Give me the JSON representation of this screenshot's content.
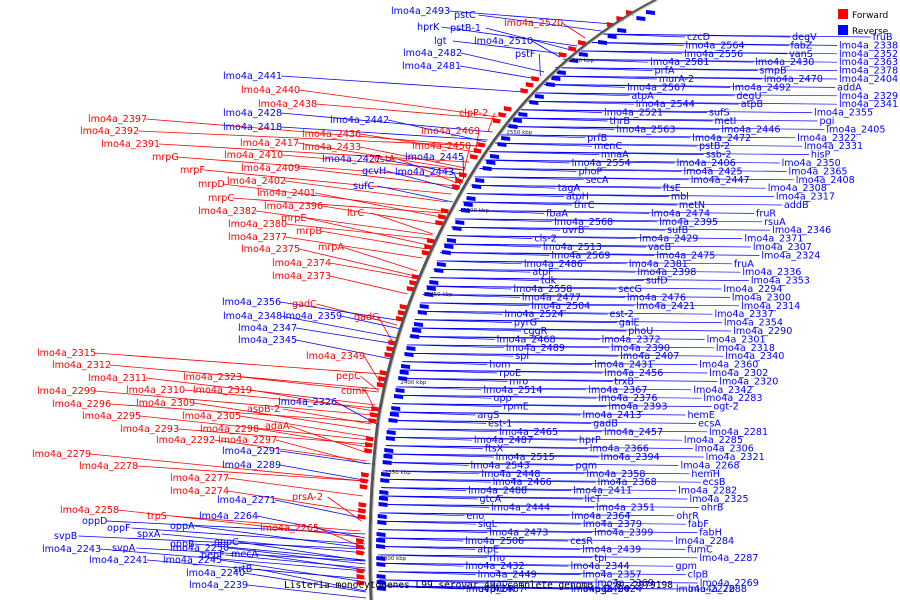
{
  "title": "Listeria monocytogenes L99 serovar 4a, complete genome. - 0..2979198",
  "legend": [
    {
      "label": "Forward",
      "color": "#ff0000"
    },
    {
      "label": "Reverse",
      "color": "#0000ff"
    }
  ],
  "colors": {
    "forward": "#ff0000",
    "reverse": "#0000ff",
    "backbone": "#555555"
  },
  "ticks": [
    "2600 kbp",
    "2550 kbp",
    "2500 kbp",
    "2450 kbp",
    "2400 kbp",
    "2350 kbp",
    "2300 kbp"
  ],
  "forward_labels": [
    "lmo4a_2520",
    "clpP-2",
    "lmo4a_2469",
    "lmo4a_2450",
    "lmo4a_2440",
    "lmo4a_2438",
    "lmo4a_2436",
    "lmo4a_2433",
    "estA",
    "lmo4a_2417",
    "lmo4a_2410",
    "lmo4a_2409",
    "lmo4a_2402",
    "lmo4a_2401",
    "lmo4a_2397",
    "lmo4a_2392",
    "lmo4a_2391",
    "mrpG",
    "mrpF",
    "mrpD",
    "mrpC",
    "lmo4a_2396",
    "ltrC",
    "lmo4a_2382",
    "mrpE",
    "lmo4a_2380",
    "mrpB",
    "lmo4a_2377",
    "mrpA",
    "lmo4a_2375",
    "lmo4a_2374",
    "lmo4a_2373",
    "gadC",
    "gadG",
    "lmo4a_2349",
    "pepC",
    "comK",
    "lmo4a_2315",
    "lmo4a_2312",
    "lmo4a_2311",
    "lmo4a_2323",
    "lmo4a_2310",
    "lmo4a_2319",
    "lmo4a_2299",
    "lmo4a_2309",
    "aspB-2",
    "lmo4a_2296",
    "lmo4a_2305",
    "lmo4a_2295",
    "adaA",
    "lmo4a_2293",
    "lmo4a_2298",
    "lmo4a_2292",
    "lmo4a_2297",
    "lmo4a_2279",
    "lmo4a_2278",
    "lmo4a_2277",
    "lmo4a_2274",
    "prsA-2",
    "lmo4a_2258",
    "trpS",
    "lmo4a_2265"
  ],
  "reverse_outer_labels": [
    "lmo4a_2493",
    "pstC",
    "hprK",
    "pstB-1",
    "lgt",
    "lmo4a_2510",
    "lmo4a_2482",
    "pstF",
    "lmo4a_2481",
    "lmo4a_2441",
    "lmo4a_2428",
    "lmo4a_2442",
    "lmo4a_2418",
    "lmo4a_2427",
    "gcvH",
    "lmo4a_2445",
    "lmo4a_2443",
    "sufC",
    "lmo4a_2356",
    "lmo4a_2348",
    "lmo4a_2359",
    "lmo4a_2347",
    "lmo4a_2345",
    "lmo4a_2326",
    "lmo4a_2291",
    "lmo4a_2289",
    "lmo4a_2271",
    "lmo4a_2264",
    "oppD",
    "oppF",
    "spxA",
    "oppA",
    "svpB",
    "oppB",
    "oppC",
    "lmo4a_2243",
    "svpA",
    "lmo4a_2250",
    "lmo4a_2241",
    "lmo4a_2245",
    "pepF",
    "mecA",
    "lmo4a_2240",
    "srtB",
    "lmo4a_2239"
  ],
  "reverse_inner_labels": [
    "czcD",
    "lmo4a_2564",
    "lmo4a_2556",
    "lmo4a_2581",
    "prfA",
    "murA-2",
    "lmo4a_2567",
    "atpA",
    "lmo4a_2544",
    "lmo4a_2521",
    "thrB",
    "lmo4a_2563",
    "prfB",
    "menC",
    "mnaA",
    "lmo4a_2554",
    "phoP",
    "secA",
    "tagA",
    "atpH",
    "thrC",
    "fbaA",
    "lmo4a_2568",
    "uvrB",
    "cls-2",
    "lmo4a_2513",
    "lmo4a_2569",
    "lmo4a_2486",
    "atpF",
    "tdk",
    "lmo4a_2558",
    "lmo4a_2477",
    "lmo4a_2504",
    "lmo4a_2524",
    "pyrG",
    "cggR",
    "lmo4a_2468",
    "lmo4a_2489",
    "spl",
    "hom",
    "rpoE",
    "mro",
    "lmo4a_2514",
    "upp",
    "rpmE",
    "argS",
    "est-1",
    "lmo4a_2465",
    "lmo4a_2487",
    "ftsX",
    "lmo4a_2515",
    "lmo4a_2543",
    "lmo4a_2448",
    "lmo4a_2466",
    "lmo4a_2488",
    "gtcA",
    "lmo4a_2444",
    "eno",
    "sigL",
    "lmo4a_2473",
    "lmo4a_2506",
    "atpE",
    "rho",
    "lmo4a_2432",
    "lmo4a_2449",
    "gap",
    "lmo4a_2467",
    "uvrA",
    "phoR",
    "degV",
    "fabZ",
    "vanS",
    "lmo4a_2430",
    "smpB",
    "lmo4a_2470",
    "lmo4a_2492",
    "degU",
    "atpB",
    "sufS",
    "metI",
    "lmo4a_2446",
    "lmo4a_2472",
    "pstB-2",
    "ssb-2",
    "lmo4a_2406",
    "lmo4a_2425",
    "lmo4a_2447",
    "ftsE",
    "mbl",
    "metN",
    "lmo4a_2474",
    "lmo4a_2395",
    "sufB",
    "lmo4a_2429",
    "vacB",
    "lmo4a_2475",
    "lmo4a_2381",
    "lmo4a_2398",
    "sufD",
    "secG",
    "lmo4a_2476",
    "lmo4a_2421",
    "est-2",
    "galE",
    "phoU",
    "lmo4a_2372",
    "lmo4a_2390",
    "lmo4a_2407",
    "lmo4a_2431",
    "lmo4a_2456",
    "trxB",
    "lmo4a_2367",
    "lmo4a_2376",
    "lmo4a_2393",
    "lmo4a_2413",
    "gadB",
    "lmo4a_2457",
    "hprP",
    "lmo4a_2366",
    "lmo4a_2394",
    "pgm",
    "lmo4a_2358",
    "lmo4a_2368",
    "lmo4a_2411",
    "licT",
    "lmo4a_2351",
    "lmo4a_2364",
    "lmo4a_2379",
    "lmo4a_2399",
    "cesR",
    "lmo4a_2439",
    "tpi",
    "lmo4a_2344",
    "lmo4a_2357",
    "lmo4a_2369",
    "lmo4a_2400",
    "lmo4a_2424",
    "pgk",
    "fruB",
    "lmo4a_2338",
    "lmo4a_2352",
    "lmo4a_2363",
    "lmo4a_2378",
    "lmo4a_2404",
    "addA",
    "lmo4a_2329",
    "lmo4a_2341",
    "lmo4a_2355",
    "pgi",
    "lmo4a_2405",
    "lmo4a_2322",
    "lmo4a_2331",
    "hisP",
    "lmo4a_2350",
    "lmo4a_2365",
    "lmo4a_2408",
    "lmo4a_2308",
    "lmo4a_2317",
    "addB",
    "fruR",
    "rsuA",
    "lmo4a_2346",
    "lmo4a_2371",
    "lmo4a_2307",
    "lmo4a_2324",
    "fruA",
    "lmo4a_2336",
    "lmo4a_2353",
    "lmo4a_2294",
    "lmo4a_2300",
    "lmo4a_2314",
    "lmo4a_2337",
    "lmo4a_2354",
    "lmo4a_2290",
    "lmo4a_2301",
    "lmo4a_2318",
    "lmo4a_2340",
    "lmo4a_2360",
    "lmo4a_2302",
    "lmo4a_2320",
    "lmo4a_2342",
    "lmo4a_2283",
    "ogt-2",
    "hemE",
    "ecsA",
    "lmo4a_2281",
    "lmo4a_2285",
    "lmo4a_2306",
    "lmo4a_2321",
    "lmo4a_2268",
    "hemH",
    "ecsB",
    "lmo4a_2282",
    "lmo4a_2325",
    "ohrB",
    "ohrR",
    "fabF",
    "fabH",
    "lmo4a_2284",
    "fumC",
    "lmo4a_2287",
    "gpm",
    "clpB",
    "lmo4a_2269",
    "lmo4a_2270",
    "lmo4a_2288"
  ]
}
